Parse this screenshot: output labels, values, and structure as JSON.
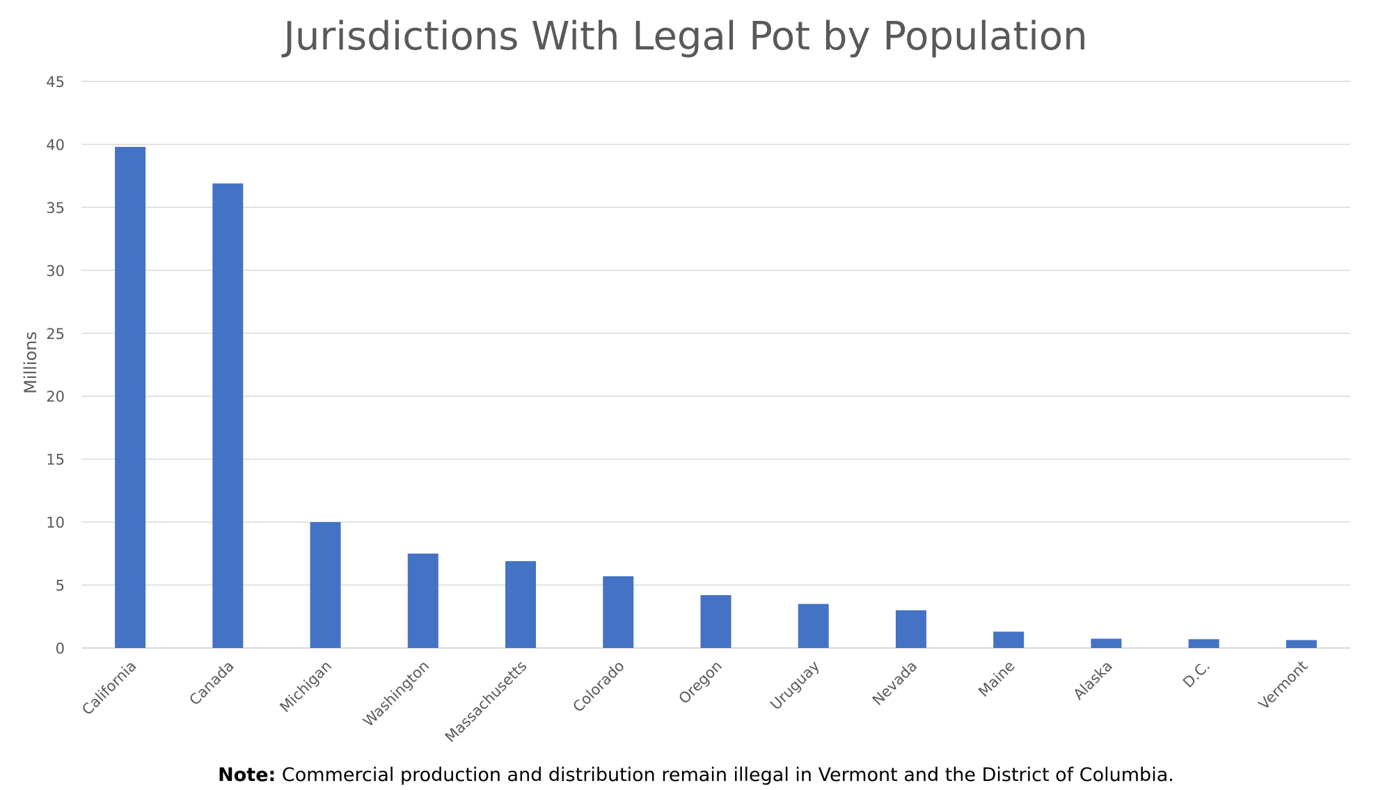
{
  "chart_data": {
    "type": "bar",
    "title": "Jurisdictions With Legal Pot by Population",
    "xlabel": "",
    "ylabel": "Millions",
    "ylim": [
      0,
      45
    ],
    "yticks": [
      0,
      5,
      10,
      15,
      20,
      25,
      30,
      35,
      40,
      45
    ],
    "grid": true,
    "categories": [
      "California",
      "Canada",
      "Michigan",
      "Washington",
      "Massachusetts",
      "Colorado",
      "Oregon",
      "Uruguay",
      "Nevada",
      "Maine",
      "Alaska",
      "D.C.",
      "Vermont"
    ],
    "series": [
      {
        "values": [
          39.8,
          36.9,
          10.0,
          7.5,
          6.9,
          5.7,
          4.2,
          3.5,
          3.0,
          1.3,
          0.74,
          0.7,
          0.63
        ],
        "color": "#4472C4"
      }
    ]
  },
  "note": {
    "label": "Note:",
    "text": " Commercial production and distribution remain illegal in Vermont and the District of Columbia."
  },
  "colors": {
    "bar": "#4472C4",
    "grid": "#d9d9d9",
    "text": "#595959"
  }
}
